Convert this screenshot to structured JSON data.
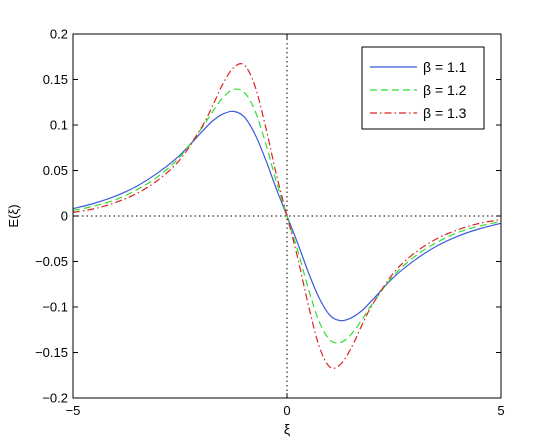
{
  "chart_data": {
    "type": "line",
    "title": "",
    "xlabel": "ξ",
    "ylabel": "E(ξ)",
    "xlim": [
      -5,
      5
    ],
    "ylim": [
      -0.2,
      0.2
    ],
    "xticks": [
      -5,
      0,
      5
    ],
    "xtick_labels": [
      "−5",
      "0",
      "5"
    ],
    "yticks": [
      -0.2,
      -0.15,
      -0.1,
      -0.05,
      0,
      0.05,
      0.1,
      0.15,
      0.2
    ],
    "ytick_labels": [
      "−0.2",
      "−0.15",
      "−0.1",
      "−0.05",
      "0",
      "0.05",
      "0.1",
      "0.15",
      "0.2"
    ],
    "grid": false,
    "reference_lines": {
      "x0": true,
      "y0": true
    },
    "legend_position": "top-right",
    "series": [
      {
        "name": "β = 1.1",
        "color": "#3b5bdb",
        "style": "solid",
        "x": [
          -5,
          -4.5,
          -4,
          -3.5,
          -3,
          -2.5,
          -2,
          -1.75,
          -1.5,
          -1.25,
          -1,
          -0.75,
          -0.5,
          -0.25,
          0,
          0.25,
          0.5,
          0.75,
          1,
          1.25,
          1.5,
          1.75,
          2,
          2.5,
          3,
          3.5,
          4,
          4.5,
          5
        ],
        "y": [
          0.008,
          0.014,
          0.022,
          0.033,
          0.048,
          0.067,
          0.092,
          0.104,
          0.112,
          0.115,
          0.109,
          0.09,
          0.062,
          0.03,
          0,
          -0.03,
          -0.062,
          -0.09,
          -0.109,
          -0.115,
          -0.112,
          -0.104,
          -0.092,
          -0.067,
          -0.048,
          -0.033,
          -0.022,
          -0.014,
          -0.008
        ]
      },
      {
        "name": "β = 1.2",
        "color": "#33dd33",
        "style": "dashed",
        "x": [
          -5,
          -4.5,
          -4,
          -3.5,
          -3,
          -2.5,
          -2,
          -1.75,
          -1.5,
          -1.25,
          -1,
          -0.75,
          -0.5,
          -0.25,
          0,
          0.25,
          0.5,
          0.75,
          1,
          1.25,
          1.5,
          1.75,
          2,
          2.5,
          3,
          3.5,
          4,
          4.5,
          5
        ],
        "y": [
          0.006,
          0.011,
          0.018,
          0.029,
          0.044,
          0.065,
          0.096,
          0.114,
          0.13,
          0.139,
          0.136,
          0.116,
          0.08,
          0.038,
          0,
          -0.038,
          -0.08,
          -0.116,
          -0.136,
          -0.139,
          -0.13,
          -0.114,
          -0.096,
          -0.065,
          -0.044,
          -0.029,
          -0.018,
          -0.011,
          -0.006
        ]
      },
      {
        "name": "β = 1.3",
        "color": "#dd2222",
        "style": "dashdot",
        "x": [
          -5,
          -4.5,
          -4,
          -3.5,
          -3,
          -2.5,
          -2,
          -1.75,
          -1.5,
          -1.25,
          -1,
          -0.75,
          -0.5,
          -0.25,
          0,
          0.25,
          0.5,
          0.75,
          1,
          1.25,
          1.5,
          1.75,
          2,
          2.5,
          3,
          3.5,
          4,
          4.5,
          5
        ],
        "y": [
          0.004,
          0.008,
          0.015,
          0.025,
          0.04,
          0.062,
          0.097,
          0.12,
          0.145,
          0.163,
          0.166,
          0.143,
          0.098,
          0.046,
          0,
          -0.046,
          -0.098,
          -0.143,
          -0.166,
          -0.163,
          -0.145,
          -0.12,
          -0.097,
          -0.062,
          -0.04,
          -0.025,
          -0.015,
          -0.008,
          -0.004
        ]
      }
    ]
  }
}
